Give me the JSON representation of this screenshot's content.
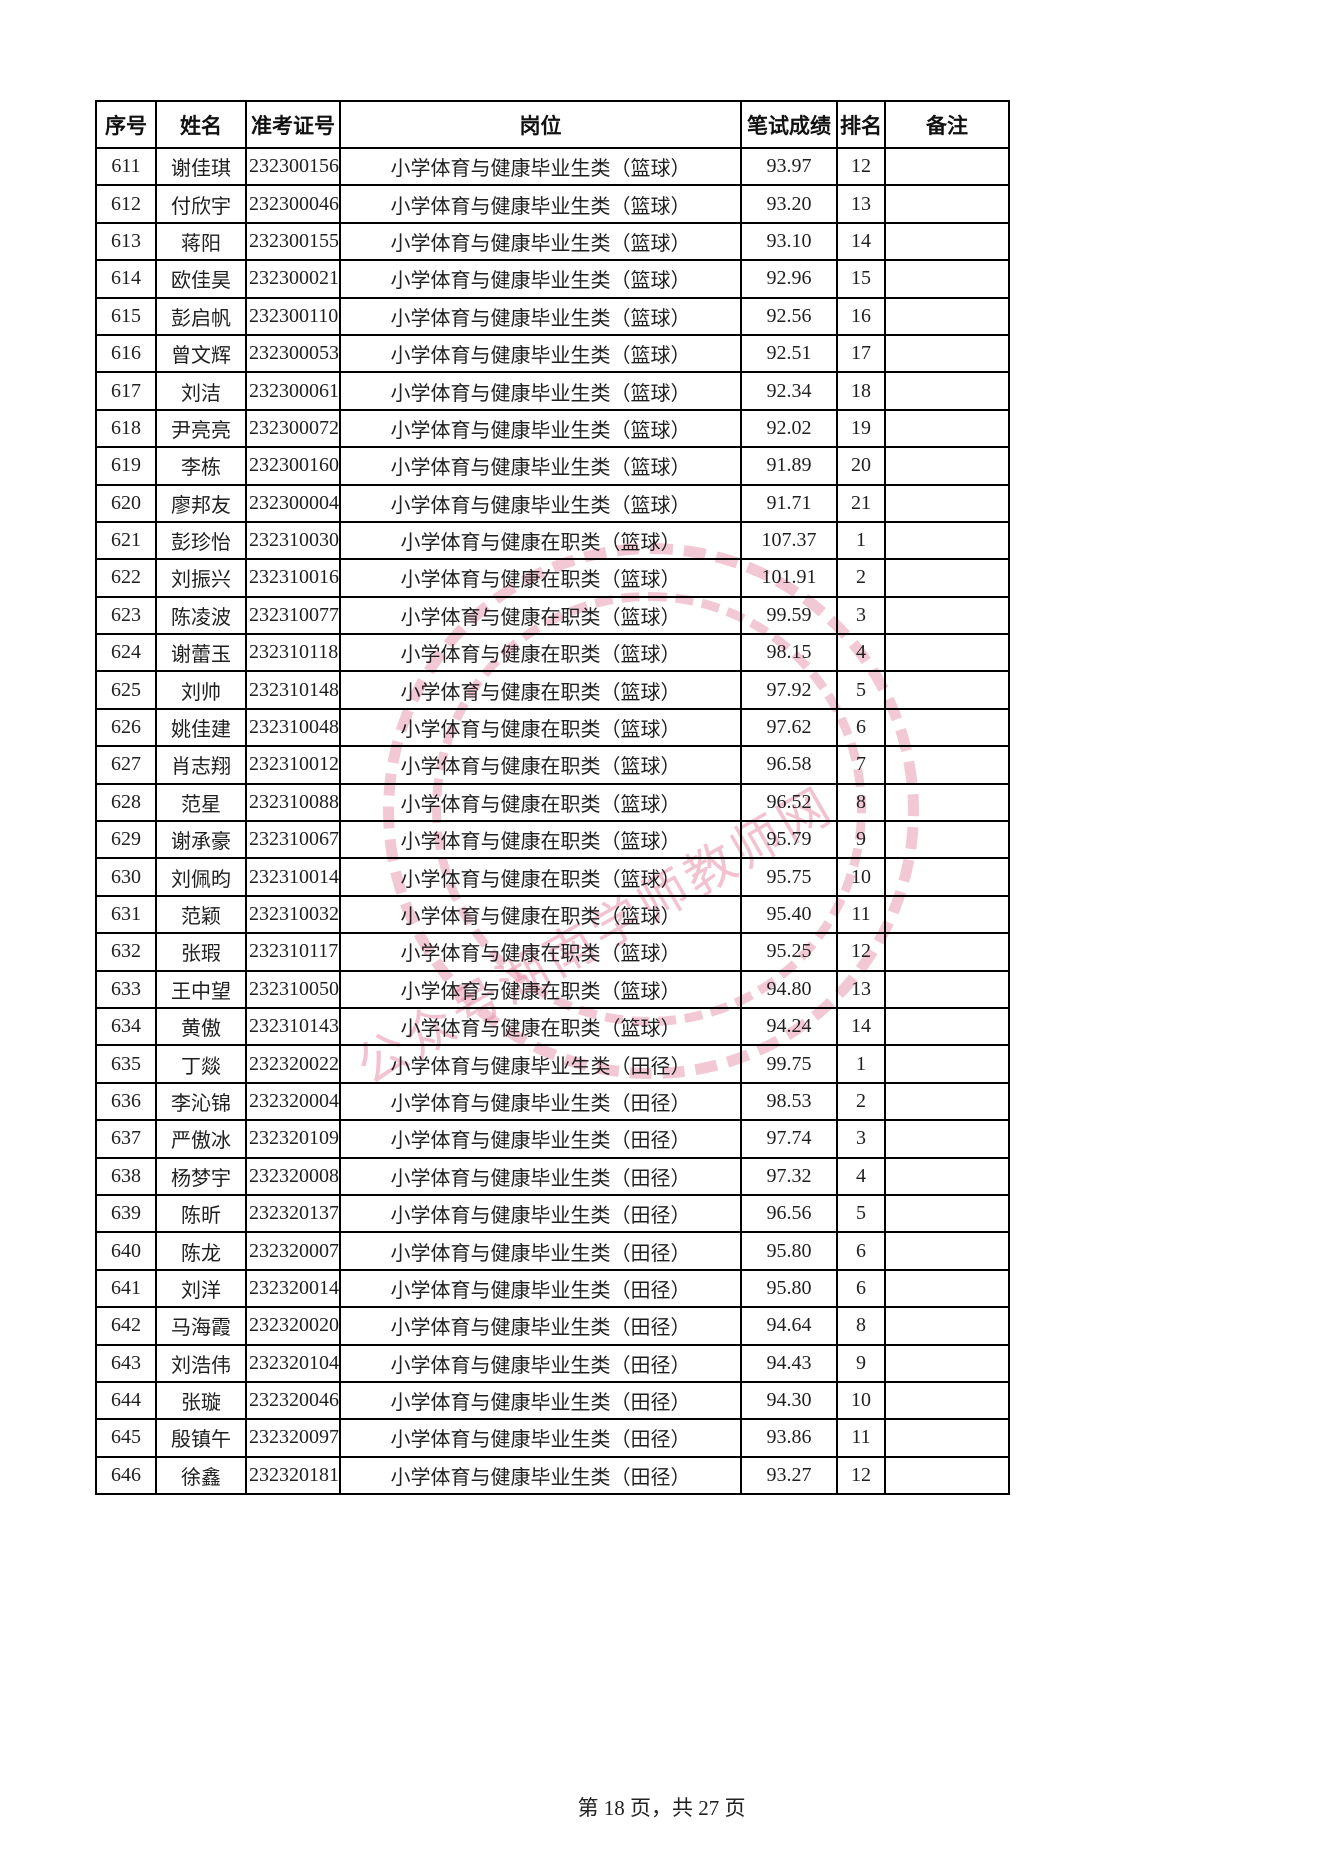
{
  "page": {
    "footer": "第 18 页，共 27 页"
  },
  "watermark": {
    "text": "公众号湖南学师教师网",
    "color": "rgba(231,139,166,0.72)"
  },
  "table": {
    "headers": [
      "序号",
      "姓名",
      "准考证号",
      "岗位",
      "笔试成绩",
      "排名",
      "备注"
    ],
    "rows": [
      [
        "611",
        "谢佳琪",
        "232300156",
        "小学体育与健康毕业生类（篮球）",
        "93.97",
        "12",
        ""
      ],
      [
        "612",
        "付欣宇",
        "232300046",
        "小学体育与健康毕业生类（篮球）",
        "93.20",
        "13",
        ""
      ],
      [
        "613",
        "蒋阳",
        "232300155",
        "小学体育与健康毕业生类（篮球）",
        "93.10",
        "14",
        ""
      ],
      [
        "614",
        "欧佳昊",
        "232300021",
        "小学体育与健康毕业生类（篮球）",
        "92.96",
        "15",
        ""
      ],
      [
        "615",
        "彭启帆",
        "232300110",
        "小学体育与健康毕业生类（篮球）",
        "92.56",
        "16",
        ""
      ],
      [
        "616",
        "曾文辉",
        "232300053",
        "小学体育与健康毕业生类（篮球）",
        "92.51",
        "17",
        ""
      ],
      [
        "617",
        "刘洁",
        "232300061",
        "小学体育与健康毕业生类（篮球）",
        "92.34",
        "18",
        ""
      ],
      [
        "618",
        "尹亮亮",
        "232300072",
        "小学体育与健康毕业生类（篮球）",
        "92.02",
        "19",
        ""
      ],
      [
        "619",
        "李栋",
        "232300160",
        "小学体育与健康毕业生类（篮球）",
        "91.89",
        "20",
        ""
      ],
      [
        "620",
        "廖邦友",
        "232300004",
        "小学体育与健康毕业生类（篮球）",
        "91.71",
        "21",
        ""
      ],
      [
        "621",
        "彭珍怡",
        "232310030",
        "小学体育与健康在职类（篮球）",
        "107.37",
        "1",
        ""
      ],
      [
        "622",
        "刘振兴",
        "232310016",
        "小学体育与健康在职类（篮球）",
        "101.91",
        "2",
        ""
      ],
      [
        "623",
        "陈凌波",
        "232310077",
        "小学体育与健康在职类（篮球）",
        "99.59",
        "3",
        ""
      ],
      [
        "624",
        "谢蕾玉",
        "232310118",
        "小学体育与健康在职类（篮球）",
        "98.15",
        "4",
        ""
      ],
      [
        "625",
        "刘帅",
        "232310148",
        "小学体育与健康在职类（篮球）",
        "97.92",
        "5",
        ""
      ],
      [
        "626",
        "姚佳建",
        "232310048",
        "小学体育与健康在职类（篮球）",
        "97.62",
        "6",
        ""
      ],
      [
        "627",
        "肖志翔",
        "232310012",
        "小学体育与健康在职类（篮球）",
        "96.58",
        "7",
        ""
      ],
      [
        "628",
        "范星",
        "232310088",
        "小学体育与健康在职类（篮球）",
        "96.52",
        "8",
        ""
      ],
      [
        "629",
        "谢承豪",
        "232310067",
        "小学体育与健康在职类（篮球）",
        "95.79",
        "9",
        ""
      ],
      [
        "630",
        "刘佩昀",
        "232310014",
        "小学体育与健康在职类（篮球）",
        "95.75",
        "10",
        ""
      ],
      [
        "631",
        "范颖",
        "232310032",
        "小学体育与健康在职类（篮球）",
        "95.40",
        "11",
        ""
      ],
      [
        "632",
        "张瑕",
        "232310117",
        "小学体育与健康在职类（篮球）",
        "95.25",
        "12",
        ""
      ],
      [
        "633",
        "王中望",
        "232310050",
        "小学体育与健康在职类（篮球）",
        "94.80",
        "13",
        ""
      ],
      [
        "634",
        "黄傲",
        "232310143",
        "小学体育与健康在职类（篮球）",
        "94.24",
        "14",
        ""
      ],
      [
        "635",
        "丁燚",
        "232320022",
        "小学体育与健康毕业生类（田径）",
        "99.75",
        "1",
        ""
      ],
      [
        "636",
        "李沁锦",
        "232320004",
        "小学体育与健康毕业生类（田径）",
        "98.53",
        "2",
        ""
      ],
      [
        "637",
        "严傲冰",
        "232320109",
        "小学体育与健康毕业生类（田径）",
        "97.74",
        "3",
        ""
      ],
      [
        "638",
        "杨梦宇",
        "232320008",
        "小学体育与健康毕业生类（田径）",
        "97.32",
        "4",
        ""
      ],
      [
        "639",
        "陈昕",
        "232320137",
        "小学体育与健康毕业生类（田径）",
        "96.56",
        "5",
        ""
      ],
      [
        "640",
        "陈龙",
        "232320007",
        "小学体育与健康毕业生类（田径）",
        "95.80",
        "6",
        ""
      ],
      [
        "641",
        "刘洋",
        "232320014",
        "小学体育与健康毕业生类（田径）",
        "95.80",
        "6",
        ""
      ],
      [
        "642",
        "马海霞",
        "232320020",
        "小学体育与健康毕业生类（田径）",
        "94.64",
        "8",
        ""
      ],
      [
        "643",
        "刘浩伟",
        "232320104",
        "小学体育与健康毕业生类（田径）",
        "94.43",
        "9",
        ""
      ],
      [
        "644",
        "张璇",
        "232320046",
        "小学体育与健康毕业生类（田径）",
        "94.30",
        "10",
        ""
      ],
      [
        "645",
        "殷镇午",
        "232320097",
        "小学体育与健康毕业生类（田径）",
        "93.86",
        "11",
        ""
      ],
      [
        "646",
        "徐鑫",
        "232320181",
        "小学体育与健康毕业生类（田径）",
        "93.27",
        "12",
        ""
      ]
    ]
  }
}
